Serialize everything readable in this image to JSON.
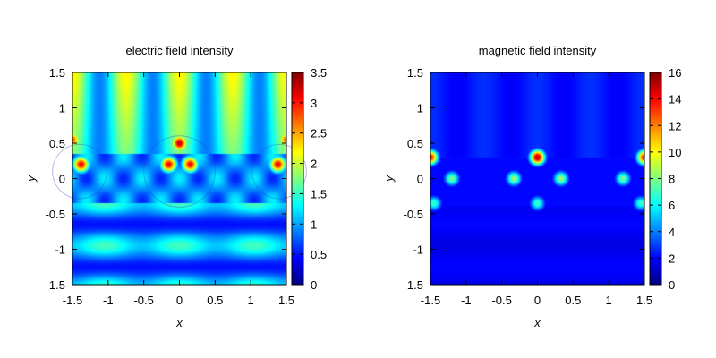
{
  "chart_data": [
    {
      "type": "heatmap",
      "title": "electric field intensity",
      "xlabel": "x",
      "ylabel": "y",
      "xlim": [
        -1.5,
        1.5
      ],
      "ylim": [
        -1.5,
        1.5
      ],
      "xticks": [
        "-1.5",
        "-1",
        "-0.5",
        "0",
        "0.5",
        "1",
        "1.5"
      ],
      "yticks": [
        "1.5",
        "1",
        "0.5",
        "0",
        "-0.5",
        "-1",
        "-1.5"
      ],
      "colorbar": {
        "min": 0,
        "max": 3.5,
        "ticks": [
          "3.5",
          "3",
          "2.5",
          "2",
          "1.5",
          "1",
          "0.5",
          "0"
        ]
      },
      "colormap": "jet",
      "features": {
        "cylinders": [
          {
            "x": -1.4,
            "y": 0.1,
            "r": 0.38
          },
          {
            "x": 0,
            "y": 0.1,
            "r": 0.5
          },
          {
            "x": 1.4,
            "y": 0.1,
            "r": 0.38
          }
        ],
        "hotspots": [
          {
            "x": 0,
            "y": 0.5,
            "value": 3.3
          },
          {
            "x": -0.15,
            "y": 0.2,
            "value": 3.1
          },
          {
            "x": 0.15,
            "y": 0.2,
            "value": 3.1
          },
          {
            "x": -1.38,
            "y": 0.2,
            "value": 3.1
          },
          {
            "x": 1.38,
            "y": 0.2,
            "value": 3.1
          },
          {
            "x": -1.5,
            "y": 0.55,
            "value": 2.8
          },
          {
            "x": 1.5,
            "y": 0.55,
            "value": 2.8
          }
        ]
      }
    },
    {
      "type": "heatmap",
      "title": "magnetic field intensity",
      "xlabel": "x",
      "ylabel": "y",
      "xlim": [
        -1.5,
        1.5
      ],
      "ylim": [
        -1.5,
        1.5
      ],
      "xticks": [
        "-1.5",
        "-1",
        "-0.5",
        "0",
        "0.5",
        "1",
        "1.5"
      ],
      "yticks": [
        "1.5",
        "1",
        "0.5",
        "0",
        "-0.5",
        "-1",
        "-1.5"
      ],
      "colorbar": {
        "min": 0,
        "max": 16,
        "ticks": [
          "16",
          "14",
          "12",
          "10",
          "8",
          "6",
          "4",
          "2",
          "0"
        ]
      },
      "colormap": "jet",
      "features": {
        "hotspots": [
          {
            "x": 0,
            "y": 0.3,
            "value": 15.5
          },
          {
            "x": -0.33,
            "y": 0.0,
            "value": 8.5
          },
          {
            "x": 0.33,
            "y": 0.0,
            "value": 8.5
          },
          {
            "x": 0,
            "y": -0.35,
            "value": 7
          },
          {
            "x": -1.5,
            "y": 0.3,
            "value": 14
          },
          {
            "x": 1.5,
            "y": 0.3,
            "value": 14
          },
          {
            "x": -1.2,
            "y": 0.0,
            "value": 8
          },
          {
            "x": 1.2,
            "y": 0.0,
            "value": 8
          },
          {
            "x": -1.45,
            "y": -0.35,
            "value": 7
          },
          {
            "x": 1.45,
            "y": -0.35,
            "value": 7
          }
        ]
      }
    }
  ]
}
